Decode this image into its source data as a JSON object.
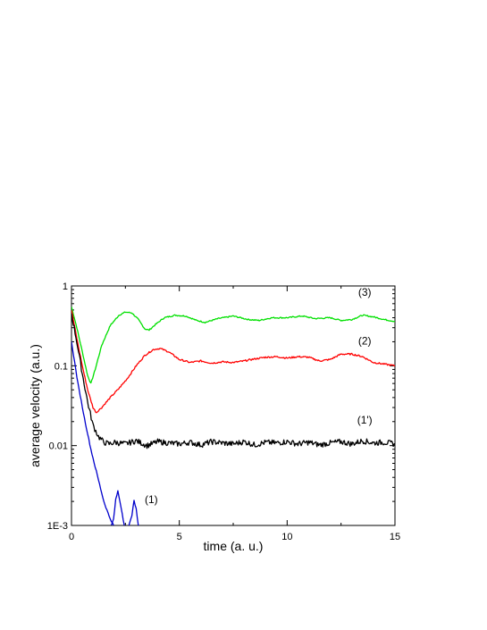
{
  "chart_data": {
    "type": "line",
    "title": "",
    "xlabel": "time (a. u.)",
    "ylabel": "average velocity (a.u.)",
    "xlim": [
      0,
      15
    ],
    "ylim": [
      0.001,
      1
    ],
    "yscale": "log",
    "grid": false,
    "x_ticks": [
      0,
      5,
      10,
      15
    ],
    "x_tick_labels": [
      "0",
      "5",
      "10",
      "15"
    ],
    "y_ticks": [
      0.001,
      0.01,
      0.1,
      1
    ],
    "y_tick_labels": [
      "1E-3",
      "0.01",
      "0.1",
      "1"
    ],
    "series": [
      {
        "name": "(3)",
        "color": "#00e000",
        "label_at": [
          13.6,
          0.75
        ],
        "x": [
          0,
          0.25,
          0.5,
          0.75,
          0.9,
          1.1,
          1.4,
          1.8,
          2.2,
          2.5,
          2.8,
          3.1,
          3.4,
          3.6,
          3.9,
          4.3,
          4.8,
          5.3,
          5.8,
          6.2,
          6.8,
          7.5,
          8.2,
          8.7,
          9.3,
          10,
          10.7,
          11.3,
          12,
          12.5,
          13,
          13.5,
          14,
          14.5,
          15
        ],
        "y": [
          0.55,
          0.3,
          0.15,
          0.075,
          0.06,
          0.09,
          0.18,
          0.32,
          0.43,
          0.47,
          0.46,
          0.38,
          0.29,
          0.28,
          0.33,
          0.4,
          0.43,
          0.42,
          0.37,
          0.35,
          0.39,
          0.42,
          0.38,
          0.37,
          0.4,
          0.4,
          0.42,
          0.39,
          0.4,
          0.37,
          0.38,
          0.43,
          0.41,
          0.38,
          0.36
        ]
      },
      {
        "name": "(2)",
        "color": "#ff0000",
        "label_at": [
          13.6,
          0.185
        ],
        "x": [
          0,
          0.25,
          0.5,
          0.75,
          1.0,
          1.15,
          1.4,
          1.8,
          2.2,
          2.6,
          3.0,
          3.4,
          3.8,
          4.1,
          4.5,
          5.0,
          5.5,
          6.0,
          6.5,
          7,
          7.5,
          8,
          8.5,
          9,
          9.5,
          10,
          10.5,
          11,
          11.5,
          12,
          12.5,
          13,
          13.5,
          14,
          14.5,
          15
        ],
        "y": [
          0.5,
          0.22,
          0.1,
          0.05,
          0.03,
          0.026,
          0.03,
          0.04,
          0.052,
          0.07,
          0.1,
          0.135,
          0.16,
          0.165,
          0.15,
          0.12,
          0.11,
          0.115,
          0.108,
          0.112,
          0.11,
          0.115,
          0.122,
          0.128,
          0.13,
          0.125,
          0.13,
          0.128,
          0.115,
          0.12,
          0.14,
          0.14,
          0.13,
          0.11,
          0.105,
          0.1
        ]
      },
      {
        "name": "(1')",
        "color": "#000000",
        "label_at": [
          13.6,
          0.019
        ],
        "x": [
          0,
          0.25,
          0.5,
          0.75,
          1.0,
          1.25,
          1.5,
          1.75,
          2,
          2.5,
          3,
          3.5,
          4,
          4.5,
          5,
          5.5,
          6,
          6.5,
          7,
          7.5,
          8,
          8.5,
          9,
          9.5,
          10,
          10.5,
          11,
          11.5,
          12,
          12.5,
          13,
          13.5,
          14,
          14.5,
          15
        ],
        "y": [
          0.45,
          0.2,
          0.08,
          0.035,
          0.018,
          0.013,
          0.011,
          0.0105,
          0.011,
          0.0105,
          0.0115,
          0.01,
          0.0112,
          0.0108,
          0.0105,
          0.011,
          0.0102,
          0.0112,
          0.0108,
          0.0105,
          0.0112,
          0.0102,
          0.011,
          0.0108,
          0.0112,
          0.0105,
          0.011,
          0.0102,
          0.0108,
          0.0112,
          0.0105,
          0.0115,
          0.0108,
          0.011,
          0.0105
        ]
      },
      {
        "name": "(1)",
        "color": "#0000cc",
        "label_at": [
          3.7,
          0.0019
        ],
        "segments": [
          {
            "x": [
              0,
              0.3,
              0.6,
              0.9,
              1.2,
              1.5,
              1.75,
              1.95
            ],
            "y": [
              0.2,
              0.06,
              0.022,
              0.009,
              0.0042,
              0.002,
              0.0013,
              0.001
            ]
          },
          {
            "x": [
              1.85,
              1.95,
              2.05,
              2.15,
              2.3,
              2.45
            ],
            "y": [
              0.001,
              0.0012,
              0.0021,
              0.0027,
              0.0017,
              0.001
            ]
          },
          {
            "x": [
              2.65,
              2.8,
              2.9,
              3.0,
              3.1
            ],
            "y": [
              0.001,
              0.0013,
              0.0021,
              0.0016,
              0.001
            ]
          }
        ]
      }
    ]
  }
}
